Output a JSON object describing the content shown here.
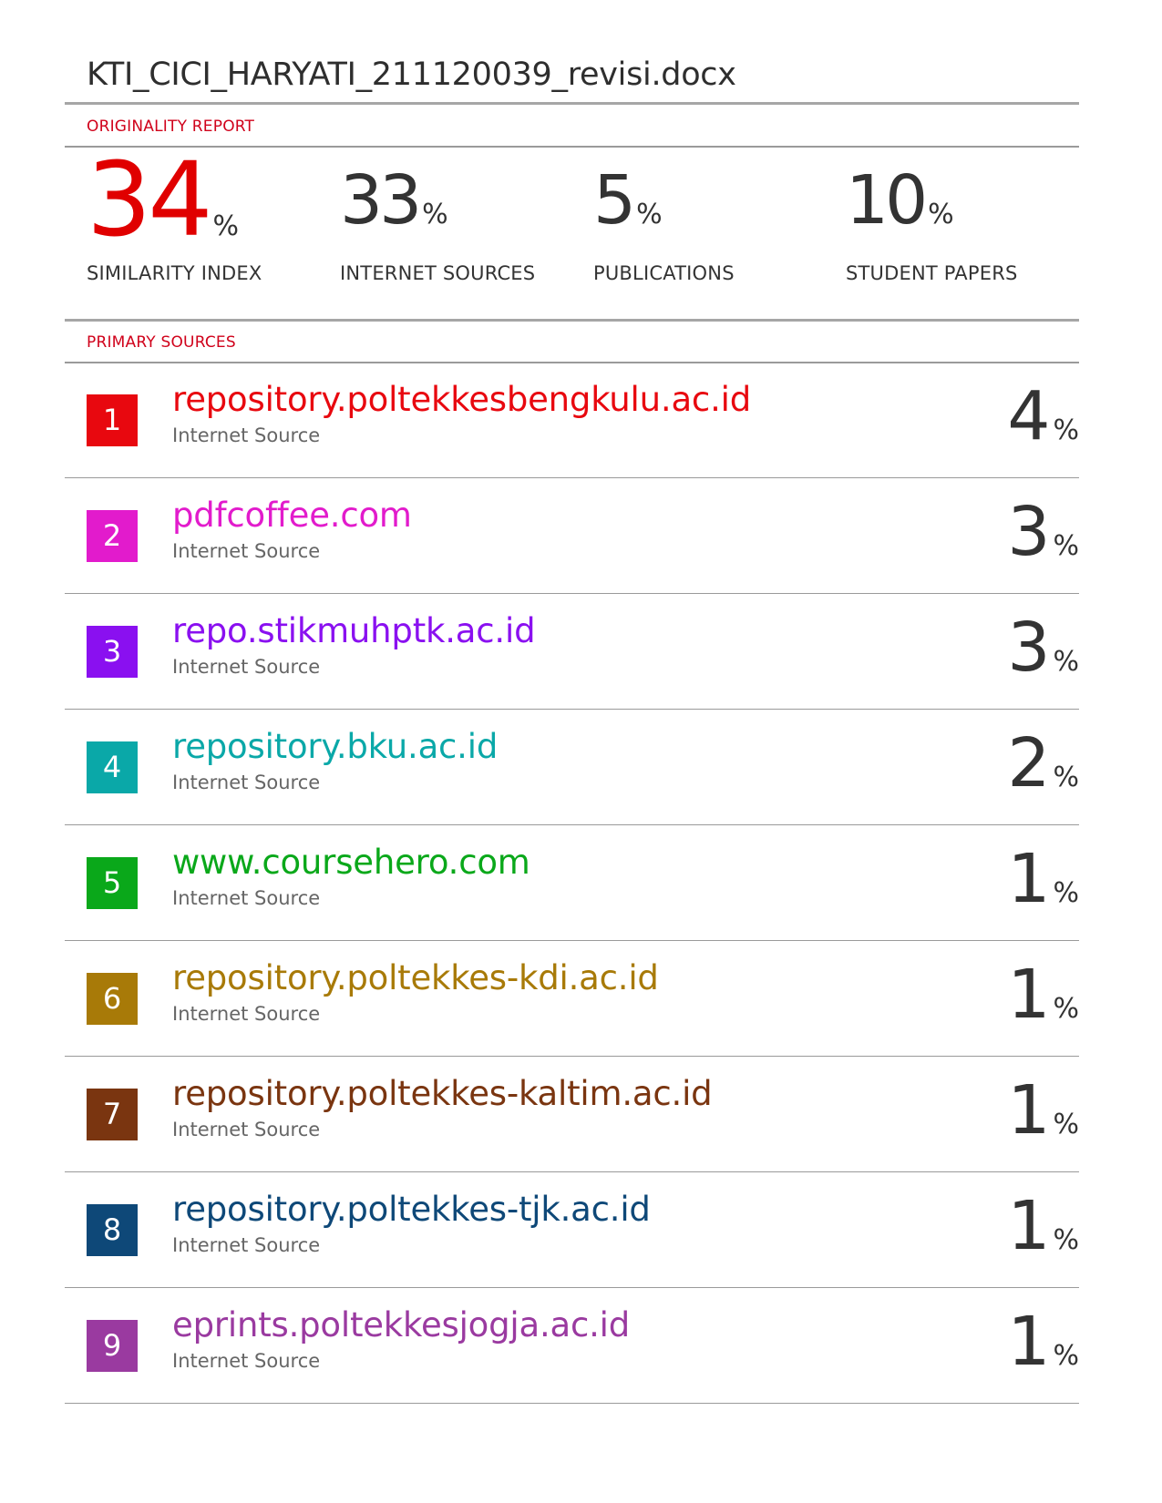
{
  "document": {
    "title": "KTI_CICI_HARYATI_211120039_revisi.docx"
  },
  "report": {
    "label": "ORIGINALITY REPORT",
    "stats": [
      {
        "value": "34",
        "unit": "%",
        "caption": "SIMILARITY INDEX"
      },
      {
        "value": "33",
        "unit": "%",
        "caption": "INTERNET SOURCES"
      },
      {
        "value": "5",
        "unit": "%",
        "caption": "PUBLICATIONS"
      },
      {
        "value": "10",
        "unit": "%",
        "caption": "STUDENT PAPERS"
      }
    ],
    "accent_color": "#e00000"
  },
  "primary_sources": {
    "label": "PRIMARY SOURCES",
    "items": [
      {
        "rank": "1",
        "name": "repository.poltekkesbengkulu.ac.id",
        "type": "Internet Source",
        "percent": "4",
        "unit": "%",
        "color": "#e8080f"
      },
      {
        "rank": "2",
        "name": "pdfcoffee.com",
        "type": "Internet Source",
        "percent": "3",
        "unit": "%",
        "color": "#e21bcc"
      },
      {
        "rank": "3",
        "name": "repo.stikmuhptk.ac.id",
        "type": "Internet Source",
        "percent": "3",
        "unit": "%",
        "color": "#8a10f0"
      },
      {
        "rank": "4",
        "name": "repository.bku.ac.id",
        "type": "Internet Source",
        "percent": "2",
        "unit": "%",
        "color": "#0aa8a8"
      },
      {
        "rank": "5",
        "name": "www.coursehero.com",
        "type": "Internet Source",
        "percent": "1",
        "unit": "%",
        "color": "#0aa81a"
      },
      {
        "rank": "6",
        "name": "repository.poltekkes-kdi.ac.id",
        "type": "Internet Source",
        "percent": "1",
        "unit": "%",
        "color": "#a87a08"
      },
      {
        "rank": "7",
        "name": "repository.poltekkes-kaltim.ac.id",
        "type": "Internet Source",
        "percent": "1",
        "unit": "%",
        "color": "#7a3510"
      },
      {
        "rank": "8",
        "name": "repository.poltekkes-tjk.ac.id",
        "type": "Internet Source",
        "percent": "1",
        "unit": "%",
        "color": "#0e4878"
      },
      {
        "rank": "9",
        "name": "eprints.poltekkesjogja.ac.id",
        "type": "Internet Source",
        "percent": "1",
        "unit": "%",
        "color": "#9a3aa0"
      }
    ]
  }
}
